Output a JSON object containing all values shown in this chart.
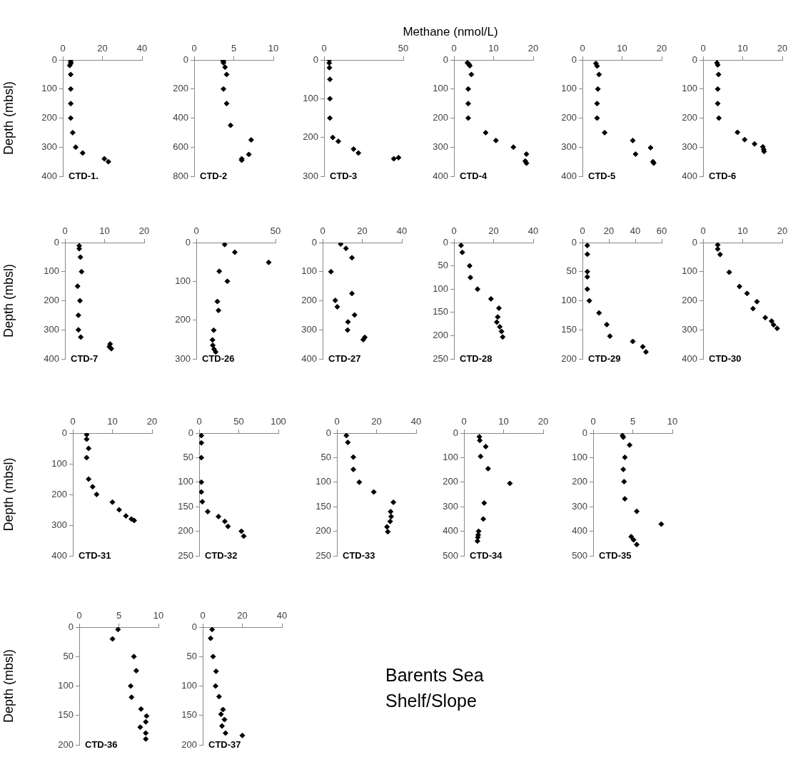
{
  "chart_data": [
    {
      "type": "scatter",
      "title": "CTD-1.",
      "ylabel": "Depth (mbsl)",
      "x": [
        4,
        4,
        4,
        3.5,
        4,
        4,
        4,
        4,
        5,
        6.5,
        10,
        21,
        23
      ],
      "values": [
        0,
        7,
        12,
        19,
        50,
        100,
        150,
        200,
        250,
        300,
        320,
        340,
        350
      ],
      "color": "#000000",
      "marker": "diamond",
      "xlim": [
        0,
        40
      ],
      "xticks": [
        0,
        20,
        40
      ],
      "ylim": [
        400,
        0
      ],
      "yticks": [
        0,
        100,
        200,
        300,
        400
      ]
    },
    {
      "type": "scatter",
      "title": "CTD-2",
      "x": [
        3.6,
        3.7,
        3.7,
        3.9,
        4.1,
        3.7,
        4.1,
        4.6,
        7.2,
        6.9,
        6,
        6
      ],
      "values": [
        0,
        10,
        20,
        50,
        100,
        200,
        300,
        450,
        550,
        650,
        680,
        690
      ],
      "color": "#000000",
      "marker": "diamond",
      "xlim": [
        0,
        10
      ],
      "xticks": [
        0,
        5,
        10
      ],
      "ylim": [
        800,
        0
      ],
      "yticks": [
        0,
        200,
        400,
        600,
        800
      ]
    },
    {
      "type": "scatter",
      "title": "CTD-3",
      "x": [
        3.3,
        3.3,
        3.4,
        3.7,
        3.7,
        3.7,
        5.5,
        9,
        18.6,
        21.7,
        44,
        47
      ],
      "values": [
        0,
        8,
        20,
        50,
        100,
        150,
        200,
        210,
        230,
        240,
        255,
        252
      ],
      "color": "#000000",
      "marker": "diamond",
      "xlim": [
        0,
        50
      ],
      "xticks": [
        0,
        50
      ],
      "ylim": [
        300,
        0
      ],
      "yticks": [
        0,
        100,
        200,
        300
      ]
    },
    {
      "type": "scatter",
      "title": "CTD-4",
      "xlabel": "Methane (nmol/L)",
      "x": [
        3.4,
        3.8,
        4,
        4.4,
        3.6,
        3.6,
        3.6,
        8,
        10.6,
        15,
        18.3,
        18,
        18.3
      ],
      "values": [
        10,
        15,
        20,
        50,
        100,
        150,
        200,
        250,
        277,
        300,
        324,
        348,
        355
      ],
      "color": "#000000",
      "marker": "diamond",
      "xlim": [
        0,
        20
      ],
      "xticks": [
        0,
        10,
        20
      ],
      "ylim": [
        400,
        0
      ],
      "yticks": [
        0,
        100,
        200,
        300,
        400
      ]
    },
    {
      "type": "scatter",
      "title": "CTD-5",
      "x": [
        3.4,
        3.7,
        4.2,
        3.9,
        3.7,
        3.7,
        5.6,
        12.7,
        17.2,
        13.4,
        17.8,
        18
      ],
      "values": [
        12,
        21,
        50,
        100,
        150,
        200,
        250,
        277,
        302,
        324,
        350,
        355
      ],
      "color": "#000000",
      "marker": "diamond",
      "xlim": [
        0,
        20
      ],
      "xticks": [
        0,
        10,
        20
      ],
      "ylim": [
        400,
        0
      ],
      "yticks": [
        0,
        100,
        200,
        300,
        400
      ]
    },
    {
      "type": "scatter",
      "title": "CTD-6",
      "x": [
        3.5,
        3.7,
        3.9,
        3.7,
        3.7,
        4,
        8.7,
        10.5,
        13,
        15.1,
        15.3,
        15.4
      ],
      "values": [
        10,
        17,
        50,
        100,
        150,
        200,
        249,
        274,
        289,
        299,
        308,
        315
      ],
      "color": "#000000",
      "marker": "diamond",
      "xlim": [
        0,
        20
      ],
      "xticks": [
        0,
        10,
        20
      ],
      "ylim": [
        400,
        0
      ],
      "yticks": [
        0,
        100,
        200,
        300,
        400
      ]
    },
    {
      "type": "scatter",
      "title": "CTD-7",
      "ylabel": "Depth (mbsl)",
      "x": [
        3.6,
        3.6,
        3.9,
        4.2,
        3.2,
        3.8,
        3.4,
        3.4,
        4,
        11.4,
        11.2,
        11.7
      ],
      "values": [
        11,
        21,
        50,
        100,
        150,
        200,
        250,
        300,
        325,
        349,
        358,
        365
      ],
      "color": "#000000",
      "marker": "diamond",
      "xlim": [
        0,
        20
      ],
      "xticks": [
        0,
        10,
        20
      ],
      "ylim": [
        400,
        0
      ],
      "yticks": [
        0,
        100,
        200,
        300,
        400
      ]
    },
    {
      "type": "scatter",
      "title": "CTD-26",
      "x": [
        17.9,
        24.3,
        45.7,
        14.5,
        19.6,
        13.3,
        14,
        11,
        10.2,
        10.4,
        11.2,
        12.2
      ],
      "values": [
        5,
        25,
        51,
        74,
        100,
        152,
        175,
        226,
        251,
        265,
        275,
        282
      ],
      "color": "#000000",
      "marker": "diamond",
      "xlim": [
        0,
        50
      ],
      "xticks": [
        0,
        50
      ],
      "ylim": [
        300,
        0
      ],
      "yticks": [
        0,
        100,
        200,
        300
      ]
    },
    {
      "type": "scatter",
      "title": "CTD-27",
      "x": [
        9.1,
        11.8,
        14.8,
        4.2,
        14.8,
        6.4,
        7.4,
        16.1,
        12.8,
        12.6,
        21.3,
        20.5
      ],
      "values": [
        5,
        20,
        52,
        100,
        175,
        199,
        221,
        249,
        273,
        301,
        326,
        334
      ],
      "color": "#000000",
      "marker": "diamond",
      "xlim": [
        0,
        40
      ],
      "xticks": [
        0,
        20,
        40
      ],
      "ylim": [
        400,
        0
      ],
      "yticks": [
        0,
        100,
        200,
        300,
        400
      ]
    },
    {
      "type": "scatter",
      "title": "CTD-28",
      "x": [
        3.6,
        4.2,
        7.9,
        8.3,
        11.9,
        18.7,
        22.7,
        22.1,
        21.6,
        23.1,
        24,
        24.6
      ],
      "values": [
        6,
        21,
        50,
        75,
        100,
        121,
        141,
        160,
        171,
        181,
        191,
        203
      ],
      "color": "#000000",
      "marker": "diamond",
      "xlim": [
        0,
        40
      ],
      "xticks": [
        0,
        20,
        40
      ],
      "ylim": [
        250,
        0
      ],
      "yticks": [
        0,
        50,
        100,
        150,
        200,
        250
      ]
    },
    {
      "type": "scatter",
      "title": "CTD-29",
      "x": [
        3.7,
        3.7,
        3.7,
        3.7,
        3.7,
        5.2,
        12.6,
        18.4,
        20.8,
        38.1,
        45.7,
        48.1
      ],
      "values": [
        5,
        20,
        50,
        59,
        80,
        100,
        121,
        141,
        161,
        170,
        179,
        188
      ],
      "color": "#000000",
      "marker": "diamond",
      "xlim": [
        0,
        60
      ],
      "xticks": [
        0,
        20,
        40,
        60
      ],
      "ylim": [
        200,
        0
      ],
      "yticks": [
        0,
        50,
        100,
        150,
        200
      ]
    },
    {
      "type": "scatter",
      "title": "CTD-30",
      "x": [
        3.7,
        3.7,
        4.3,
        6.6,
        9.2,
        11.1,
        13.6,
        12.6,
        15.7,
        17.3,
        17.8,
        18.7
      ],
      "values": [
        8,
        22,
        41,
        102,
        151,
        175,
        203,
        227,
        258,
        270,
        283,
        295
      ],
      "color": "#000000",
      "marker": "diamond",
      "xlim": [
        0,
        20
      ],
      "xticks": [
        0,
        10,
        20
      ],
      "ylim": [
        400,
        0
      ],
      "yticks": [
        0,
        100,
        200,
        300,
        400
      ]
    },
    {
      "type": "scatter",
      "title": "CTD-31",
      "ylabel": "Depth (mbsl)",
      "x": [
        3.5,
        3.5,
        4,
        3.5,
        4,
        5,
        6,
        10,
        11.7,
        13.4,
        14.8,
        15.5
      ],
      "values": [
        5,
        20,
        50,
        80,
        150,
        175,
        200,
        225,
        250,
        270,
        280,
        285
      ],
      "color": "#000000",
      "marker": "diamond",
      "xlim": [
        0,
        20
      ],
      "xticks": [
        0,
        10,
        20
      ],
      "ylim": [
        400,
        0
      ],
      "yticks": [
        0,
        100,
        200,
        300,
        400
      ]
    },
    {
      "type": "scatter",
      "title": "CTD-32",
      "x": [
        2.8,
        2.8,
        2.8,
        2.8,
        2.8,
        4,
        10.8,
        24.4,
        32.4,
        36.4,
        53.4,
        56.3
      ],
      "values": [
        5,
        20,
        50,
        100,
        120,
        140,
        160,
        170,
        180,
        190,
        200,
        210
      ],
      "color": "#000000",
      "marker": "diamond",
      "xlim": [
        0,
        100
      ],
      "xticks": [
        0,
        50,
        100
      ],
      "ylim": [
        250,
        0
      ],
      "yticks": [
        0,
        50,
        100,
        150,
        200,
        250
      ]
    },
    {
      "type": "scatter",
      "title": "CTD-33",
      "x": [
        4.8,
        5.5,
        8.3,
        8.3,
        11.3,
        18.6,
        28.5,
        27.1,
        27.4,
        26.9,
        25.3,
        25.7
      ],
      "values": [
        5,
        19,
        49,
        74,
        100,
        120,
        141,
        160,
        170,
        180,
        191,
        201
      ],
      "color": "#000000",
      "marker": "diamond",
      "xlim": [
        0,
        40
      ],
      "xticks": [
        0,
        20,
        40
      ],
      "ylim": [
        250,
        0
      ],
      "yticks": [
        0,
        50,
        100,
        150,
        200,
        250
      ]
    },
    {
      "type": "scatter",
      "title": "CTD-34",
      "x": [
        3.9,
        4,
        5.5,
        4.2,
        6.1,
        11.6,
        5.1,
        4.9,
        3.7,
        3.6,
        3.5,
        3.4
      ],
      "values": [
        15,
        30,
        55,
        95,
        145,
        205,
        285,
        350,
        400,
        415,
        425,
        440
      ],
      "color": "#000000",
      "marker": "diamond",
      "xlim": [
        0,
        20
      ],
      "xticks": [
        0,
        10,
        20
      ],
      "ylim": [
        500,
        0
      ],
      "yticks": [
        0,
        100,
        200,
        300,
        400,
        500
      ]
    },
    {
      "type": "scatter",
      "title": "CTD-35",
      "x": [
        3.7,
        3.8,
        4.6,
        4,
        3.8,
        3.9,
        4,
        5.5,
        8.6,
        4.8,
        5.1,
        5.5
      ],
      "values": [
        10,
        17,
        49,
        99,
        148,
        198,
        268,
        319,
        371,
        422,
        435,
        454
      ],
      "color": "#000000",
      "marker": "diamond",
      "xlim": [
        0,
        10
      ],
      "xticks": [
        0,
        5,
        10
      ],
      "ylim": [
        500,
        0
      ],
      "yticks": [
        0,
        100,
        200,
        300,
        400,
        500
      ]
    },
    {
      "type": "scatter",
      "title": "CTD-36",
      "ylabel": "Depth (mbsl)",
      "x": [
        4.9,
        4.2,
        6.9,
        7.2,
        6.5,
        6.6,
        7.8,
        8.5,
        8.4,
        7.7,
        8.4,
        8.4
      ],
      "values": [
        4,
        20,
        50,
        74,
        100,
        119,
        139,
        151,
        161,
        170,
        180,
        190
      ],
      "color": "#000000",
      "marker": "diamond",
      "xlim": [
        0,
        10
      ],
      "xticks": [
        0,
        5,
        10
      ],
      "ylim": [
        200,
        0
      ],
      "yticks": [
        0,
        50,
        100,
        150,
        200
      ]
    },
    {
      "type": "scatter",
      "title": "CTD-37",
      "x": [
        4.75,
        4,
        5.25,
        6.75,
        6.5,
        8.25,
        10.25,
        9.25,
        11,
        9.75,
        11.5,
        20
      ],
      "values": [
        4,
        19,
        50,
        75,
        100,
        118,
        140,
        148,
        157,
        168,
        180,
        184
      ],
      "color": "#000000",
      "marker": "diamond",
      "xlim": [
        0,
        40
      ],
      "xticks": [
        0,
        20,
        40
      ],
      "ylim": [
        200,
        0
      ],
      "yticks": [
        0,
        50,
        100,
        150,
        200
      ]
    },
    {
      "type": "other",
      "annotations": [
        "Barents Sea",
        "Shelf/Slope"
      ]
    }
  ]
}
